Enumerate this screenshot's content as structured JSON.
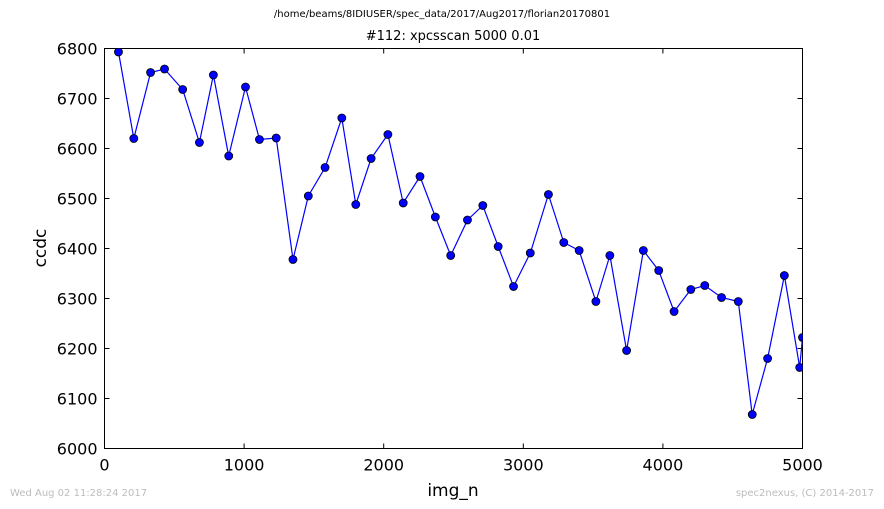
{
  "header": {
    "path": "/home/beams/8IDIUSER/spec_data/2017/Aug2017/florian20170801"
  },
  "footer": {
    "timestamp": "Wed Aug 02 11:28:24 2017",
    "credit": "spec2nexus, (C) 2014-2017"
  },
  "colors": {
    "line": "#0000ff",
    "marker_fill": "#0000ff",
    "marker_edge": "#000000",
    "footer_text": "#bdbdbd"
  },
  "chart_data": {
    "type": "line",
    "title": "#112: xpcsscan 5000 0.01",
    "xlabel": "img_n",
    "ylabel": "ccdc",
    "xlim": [
      0,
      5000
    ],
    "ylim": [
      6000,
      6800
    ],
    "grid": false,
    "xticks": [
      0,
      1000,
      2000,
      3000,
      4000,
      5000
    ],
    "yticks": [
      6000,
      6100,
      6200,
      6300,
      6400,
      6500,
      6600,
      6700,
      6800
    ],
    "series": [
      {
        "x": [
          100,
          210,
          330,
          430,
          560,
          680,
          780,
          890,
          1010,
          1110,
          1230,
          1350,
          1460,
          1580,
          1700,
          1800,
          1910,
          2030,
          2140,
          2260,
          2370,
          2480,
          2600,
          2710,
          2820,
          2930,
          3050,
          3180,
          3290,
          3400,
          3520,
          3620,
          3740,
          3860,
          3970,
          4080,
          4200,
          4300,
          4420,
          4540,
          4640,
          4750,
          4870,
          4980,
          5000
        ],
        "y": [
          6793,
          6620,
          6752,
          6759,
          6718,
          6612,
          6747,
          6585,
          6723,
          6618,
          6621,
          6378,
          6505,
          6562,
          6661,
          6488,
          6580,
          6628,
          6491,
          6544,
          6463,
          6386,
          6457,
          6486,
          6404,
          6324,
          6391,
          6508,
          6412,
          6396,
          6294,
          6386,
          6196,
          6396,
          6356,
          6274,
          6318,
          6326,
          6302,
          6294,
          6068,
          6180,
          6346,
          6162,
          6222
        ]
      }
    ]
  }
}
